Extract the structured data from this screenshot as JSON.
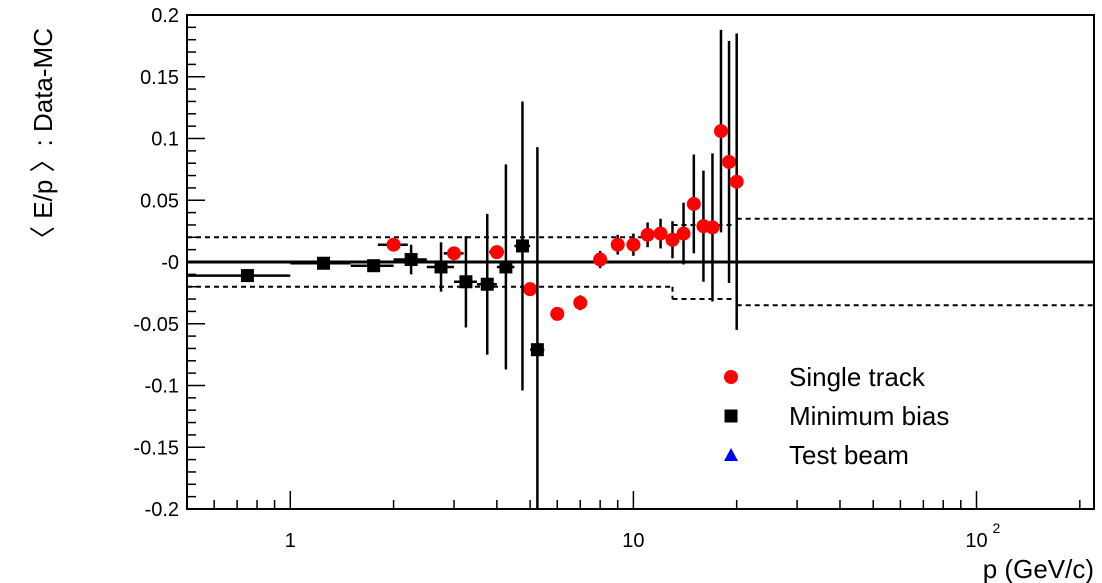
{
  "chart_data": {
    "type": "scatter",
    "title": "",
    "xlabel": "p (GeV/c)",
    "ylabel": "〈 E/p 〉: Data-MC",
    "xscale": "log",
    "xlim": [
      0.5,
      220
    ],
    "ylim": [
      -0.2,
      0.2
    ],
    "x_major_ticks": [
      {
        "value": 1,
        "label": "1"
      },
      {
        "value": 10,
        "label": "10"
      },
      {
        "value": 100,
        "label": "10",
        "exponent": "2"
      }
    ],
    "y_ticks": [
      {
        "value": 0.2,
        "label": "0.2"
      },
      {
        "value": 0.15,
        "label": "0.15"
      },
      {
        "value": 0.1,
        "label": "0.1"
      },
      {
        "value": 0.05,
        "label": "0.05"
      },
      {
        "value": 0,
        "label": "-0"
      },
      {
        "value": -0.05,
        "label": "-0.05"
      },
      {
        "value": -0.1,
        "label": "-0.1"
      },
      {
        "value": -0.15,
        "label": "-0.15"
      },
      {
        "value": -0.2,
        "label": "-0.2"
      }
    ],
    "grid": false,
    "legend_position": "bottom-right",
    "legend": [
      {
        "label": "Single track",
        "marker": "circle",
        "color": "#ff0000"
      },
      {
        "label": "Minimum bias",
        "marker": "square",
        "color": "#000000"
      },
      {
        "label": "Test beam",
        "marker": "triangle",
        "color": "#0000ff"
      }
    ],
    "series": [
      {
        "name": "Single track",
        "marker": "circle",
        "color": "#ff0000",
        "points": [
          {
            "x": 2.0,
            "y": 0.014,
            "xlo": 1.8,
            "xhi": 2.2,
            "yerr": 0.004
          },
          {
            "x": 3.0,
            "y": 0.007,
            "xlo": 2.8,
            "xhi": 3.2,
            "yerr": 0.004
          },
          {
            "x": 4.0,
            "y": 0.008,
            "xlo": 3.8,
            "xhi": 4.2,
            "yerr": 0.005
          },
          {
            "x": 5.0,
            "y": -0.022,
            "xlo": 4.8,
            "xhi": 5.2,
            "yerr": 0.005
          },
          {
            "x": 6.0,
            "y": -0.042,
            "xlo": 5.8,
            "xhi": 6.2,
            "yerr": 0.004
          },
          {
            "x": 7.0,
            "y": -0.033,
            "xlo": 6.8,
            "xhi": 7.2,
            "yerr": 0.006
          },
          {
            "x": 8.0,
            "y": 0.002,
            "xlo": 7.8,
            "xhi": 8.2,
            "yerr": 0.007
          },
          {
            "x": 9.0,
            "y": 0.014,
            "xlo": 8.8,
            "xhi": 9.2,
            "yerr": 0.008
          },
          {
            "x": 10.0,
            "y": 0.014,
            "xlo": 9.8,
            "xhi": 10.2,
            "yerr": 0.009
          },
          {
            "x": 11.0,
            "y": 0.022,
            "xlo": 10.8,
            "xhi": 11.2,
            "yerr": 0.01
          },
          {
            "x": 12.0,
            "y": 0.023,
            "xlo": 11.8,
            "xhi": 12.2,
            "yerr": 0.012
          },
          {
            "x": 13.0,
            "y": 0.018,
            "xlo": 12.8,
            "xhi": 13.2,
            "yerr": 0.015
          },
          {
            "x": 14.0,
            "y": 0.023,
            "xlo": 13.8,
            "xhi": 14.2,
            "yerr": 0.025
          },
          {
            "x": 15.0,
            "y": 0.047,
            "xlo": 14.8,
            "xhi": 15.2,
            "yerr": 0.04
          },
          {
            "x": 16.0,
            "y": 0.029,
            "xlo": 15.8,
            "xhi": 16.2,
            "yerr": 0.045
          },
          {
            "x": 17.0,
            "y": 0.028,
            "xlo": 16.8,
            "xhi": 17.2,
            "yerr": 0.06
          },
          {
            "x": 18.0,
            "y": 0.106,
            "xlo": 17.8,
            "xhi": 18.2,
            "yerr": 0.082
          },
          {
            "x": 19.0,
            "y": 0.081,
            "xlo": 18.8,
            "xhi": 19.2,
            "yerr": 0.098
          },
          {
            "x": 20.0,
            "y": 0.065,
            "xlo": 19.8,
            "xhi": 20.2,
            "yerr": 0.12
          }
        ]
      },
      {
        "name": "Minimum bias",
        "marker": "square",
        "color": "#000000",
        "points": [
          {
            "x": 0.75,
            "y": -0.011,
            "xlo": 0.5,
            "xhi": 1.0,
            "yerr": 0.002
          },
          {
            "x": 1.25,
            "y": -0.001,
            "xlo": 1.0,
            "xhi": 1.5,
            "yerr": 0.002
          },
          {
            "x": 1.75,
            "y": -0.003,
            "xlo": 1.5,
            "xhi": 2.0,
            "yerr": 0.003
          },
          {
            "x": 2.25,
            "y": 0.002,
            "xlo": 2.0,
            "xhi": 2.5,
            "yerr": 0.012
          },
          {
            "x": 2.75,
            "y": -0.004,
            "xlo": 2.5,
            "xhi": 3.0,
            "yerr": 0.02
          },
          {
            "x": 3.25,
            "y": -0.016,
            "xlo": 3.0,
            "xhi": 3.5,
            "yerr": 0.037
          },
          {
            "x": 3.75,
            "y": -0.018,
            "xlo": 3.5,
            "xhi": 4.0,
            "yerr": 0.057
          },
          {
            "x": 4.25,
            "y": -0.004,
            "xlo": 4.0,
            "xhi": 4.5,
            "yerr": 0.083
          },
          {
            "x": 4.75,
            "y": 0.013,
            "xlo": 4.5,
            "xhi": 5.0,
            "yerr": 0.117
          },
          {
            "x": 5.25,
            "y": -0.071,
            "xlo": 5.0,
            "xhi": 5.5,
            "yerr": 0.164
          }
        ]
      },
      {
        "name": "Test beam",
        "marker": "triangle",
        "color": "#0000ff",
        "points": []
      }
    ],
    "systematic_band": {
      "style": "dashed",
      "segments": [
        {
          "xlo": 0.5,
          "xhi": 5.0,
          "upper": 0.02,
          "lower": -0.02
        },
        {
          "xlo": 5.0,
          "xhi": 13.0,
          "upper": 0.02,
          "lower": -0.02
        },
        {
          "xlo": 13.0,
          "xhi": 20.0,
          "upper": 0.03,
          "lower": -0.03
        },
        {
          "xlo": 20.0,
          "xhi": 220.0,
          "upper": 0.035,
          "lower": -0.035
        }
      ]
    },
    "reference_line": {
      "y": 0
    }
  }
}
